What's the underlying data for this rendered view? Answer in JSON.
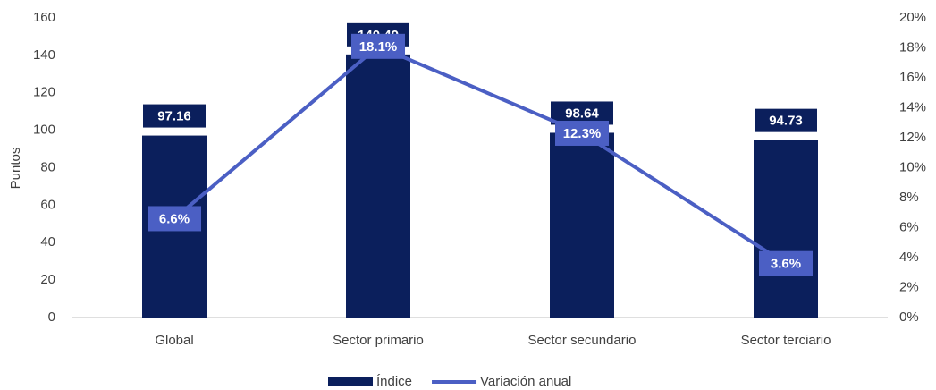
{
  "chart_data": {
    "type": "bar",
    "ylabel": "Puntos",
    "categories": [
      "Global",
      "Sector primario",
      "Sector secundario",
      "Sector terciario"
    ],
    "series": [
      {
        "name": "Índice",
        "color": "#0b1f5c",
        "values": [
          97.16,
          140.49,
          98.64,
          94.73
        ]
      },
      {
        "name": "Variación anual",
        "color": "#4b5fc4",
        "type": "line",
        "axis": "y2",
        "values": [
          6.6,
          18.1,
          12.3,
          3.6
        ],
        "value_labels": [
          "6.6%",
          "18.1%",
          "12.3%",
          "3.6%"
        ]
      }
    ],
    "ylim": [
      0,
      160
    ],
    "yticks": [
      0,
      20,
      40,
      60,
      80,
      100,
      120,
      140,
      160
    ],
    "y2lim": [
      0,
      20
    ],
    "y2ticks": [
      {
        "value": 0,
        "label": "0%"
      },
      {
        "value": 2,
        "label": "2%"
      },
      {
        "value": 4,
        "label": "4%"
      },
      {
        "value": 6,
        "label": "6%"
      },
      {
        "value": 8,
        "label": "8%"
      },
      {
        "value": 10,
        "label": "10%"
      },
      {
        "value": 12,
        "label": "12%"
      },
      {
        "value": 14,
        "label": "14%"
      },
      {
        "value": 16,
        "label": "16%"
      },
      {
        "value": 18,
        "label": "18%"
      },
      {
        "value": 20,
        "label": "20%"
      }
    ],
    "grid": false,
    "legend": "bottom"
  }
}
